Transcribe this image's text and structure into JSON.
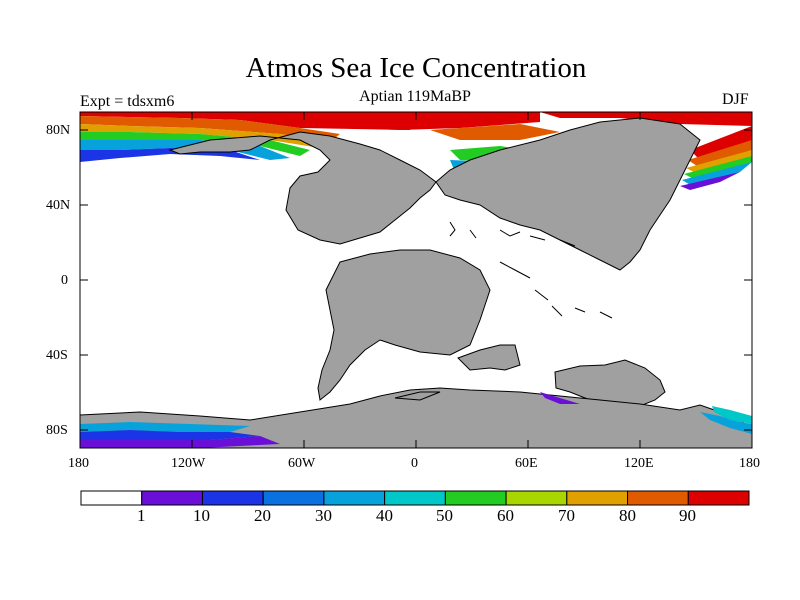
{
  "title": "Atmos Sea Ice Concentration",
  "subtitle": "Aptian  119MaBP",
  "left_label": "Expt = tdsxm6",
  "right_label": "DJF",
  "lat_labels": [
    "80N",
    "40N",
    "0",
    "40S",
    "80S"
  ],
  "lon_labels": [
    "180",
    "120W",
    "60W",
    "0",
    "60E",
    "120E",
    "180"
  ],
  "colorbar": {
    "labels": [
      "1",
      "10",
      "20",
      "30",
      "40",
      "50",
      "60",
      "70",
      "80",
      "90"
    ],
    "colors": [
      "#ffffff",
      "#6a0fd8",
      "#1a34e6",
      "#0a72e0",
      "#07a2dc",
      "#00c8c8",
      "#22cc22",
      "#aad600",
      "#e0a000",
      "#e05a00",
      "#dd0000"
    ]
  },
  "colors": {
    "land": "#a0a0a0",
    "ocean": "#ffffff",
    "coast": "#000000"
  }
}
